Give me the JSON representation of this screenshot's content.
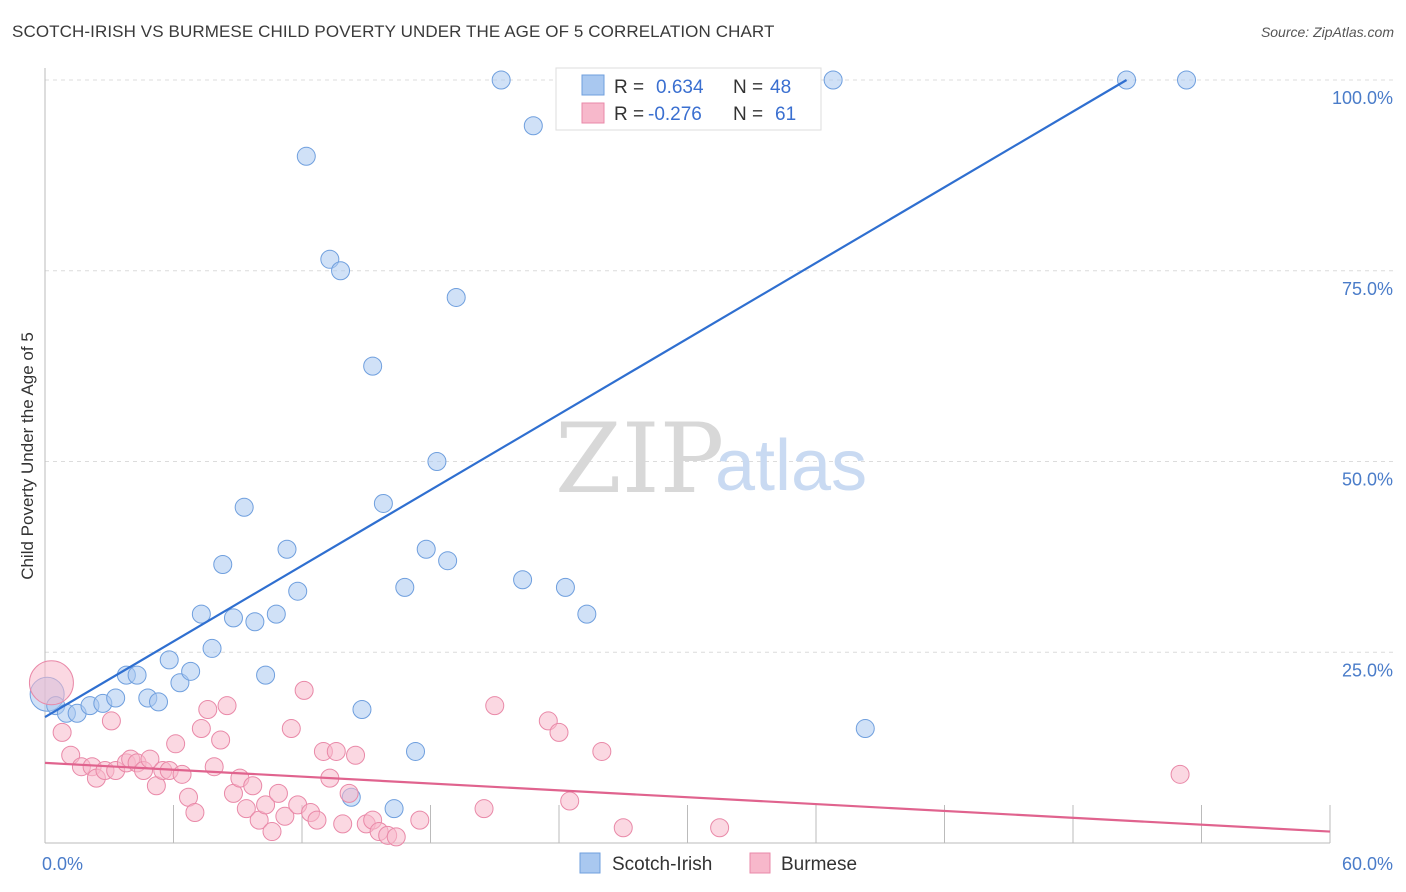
{
  "header": {
    "title": "SCOTCH-IRISH VS BURMESE CHILD POVERTY UNDER THE AGE OF 5 CORRELATION CHART",
    "source": "Source: ZipAtlas.com"
  },
  "watermark": {
    "zip": "ZIP",
    "atlas": "atlas"
  },
  "legend_top": {
    "rows": [
      {
        "r_label": "R =",
        "r_value": "0.634",
        "n_label": "N =",
        "n_value": "48",
        "color": "#a9c8f0"
      },
      {
        "r_label": "R =",
        "r_value": "-0.276",
        "n_label": "N =",
        "n_value": "61",
        "color": "#f7b8cb"
      }
    ]
  },
  "chart_data": {
    "type": "scatter",
    "title": "SCOTCH-IRISH VS BURMESE CHILD POVERTY UNDER THE AGE OF 5 CORRELATION CHART",
    "xlabel": "",
    "ylabel": "Child Poverty Under the Age of 5",
    "xlim": [
      0,
      60
    ],
    "ylim": [
      0,
      100
    ],
    "x_tick_labels": [
      "0.0%",
      "60.0%"
    ],
    "y_ticks": [
      25,
      50,
      75,
      100
    ],
    "y_tick_labels": [
      "25.0%",
      "50.0%",
      "75.0%",
      "100.0%"
    ],
    "grid": true,
    "legend_position": "bottom",
    "series": [
      {
        "name": "Scotch-Irish",
        "color": "#a9c8f0",
        "stroke": "#6f9fde",
        "line_color": "#2f6fd0",
        "trend": {
          "x": [
            0,
            50.5
          ],
          "y": [
            16.5,
            100
          ]
        },
        "points": [
          [
            0.1,
            19.5
          ],
          [
            0.5,
            18
          ],
          [
            1,
            17
          ],
          [
            1.5,
            17
          ],
          [
            2.1,
            18
          ],
          [
            2.7,
            18.3
          ],
          [
            3.3,
            19
          ],
          [
            3.8,
            22
          ],
          [
            4.3,
            22
          ],
          [
            4.8,
            19
          ],
          [
            5.3,
            18.5
          ],
          [
            5.8,
            24
          ],
          [
            6.3,
            21
          ],
          [
            6.8,
            22.5
          ],
          [
            7.3,
            30
          ],
          [
            7.8,
            25.5
          ],
          [
            8.3,
            36.5
          ],
          [
            8.8,
            29.5
          ],
          [
            9.3,
            44
          ],
          [
            9.8,
            29
          ],
          [
            10.3,
            22
          ],
          [
            10.8,
            30
          ],
          [
            11.3,
            38.5
          ],
          [
            11.8,
            33
          ],
          [
            12.2,
            90
          ],
          [
            13.3,
            76.5
          ],
          [
            13.8,
            75
          ],
          [
            14.3,
            6
          ],
          [
            14.8,
            17.5
          ],
          [
            15.3,
            62.5
          ],
          [
            15.8,
            44.5
          ],
          [
            16.3,
            4.5
          ],
          [
            16.8,
            33.5
          ],
          [
            17.3,
            12
          ],
          [
            17.8,
            38.5
          ],
          [
            18.3,
            50
          ],
          [
            18.8,
            37
          ],
          [
            19.2,
            71.5
          ],
          [
            21.3,
            100
          ],
          [
            22.3,
            34.5
          ],
          [
            22.8,
            94
          ],
          [
            24.3,
            33.5
          ],
          [
            25.3,
            30
          ],
          [
            30.3,
            100
          ],
          [
            36.8,
            100
          ],
          [
            38.3,
            15
          ],
          [
            50.5,
            100
          ],
          [
            53.3,
            100
          ]
        ]
      },
      {
        "name": "Burmese",
        "color": "#f7b8cb",
        "stroke": "#e989a8",
        "line_color": "#e0638e",
        "trend": {
          "x": [
            0,
            60
          ],
          "y": [
            10.5,
            1.5
          ]
        },
        "points": [
          [
            0.3,
            21
          ],
          [
            0.8,
            14.5
          ],
          [
            1.2,
            11.5
          ],
          [
            1.7,
            10
          ],
          [
            2.2,
            10
          ],
          [
            2.4,
            8.5
          ],
          [
            2.8,
            9.5
          ],
          [
            3.1,
            16
          ],
          [
            3.3,
            9.5
          ],
          [
            3.8,
            10.5
          ],
          [
            4.0,
            11
          ],
          [
            4.3,
            10.5
          ],
          [
            4.6,
            9.5
          ],
          [
            4.9,
            11
          ],
          [
            5.2,
            7.5
          ],
          [
            5.5,
            9.5
          ],
          [
            5.8,
            9.5
          ],
          [
            6.1,
            13
          ],
          [
            6.4,
            9
          ],
          [
            6.7,
            6
          ],
          [
            7.0,
            4
          ],
          [
            7.3,
            15
          ],
          [
            7.6,
            17.5
          ],
          [
            7.9,
            10
          ],
          [
            8.2,
            13.5
          ],
          [
            8.5,
            18
          ],
          [
            8.8,
            6.5
          ],
          [
            9.1,
            8.5
          ],
          [
            9.4,
            4.5
          ],
          [
            9.7,
            7.5
          ],
          [
            10.0,
            3
          ],
          [
            10.3,
            5
          ],
          [
            10.6,
            1.5
          ],
          [
            10.9,
            6.5
          ],
          [
            11.2,
            3.5
          ],
          [
            11.5,
            15
          ],
          [
            11.8,
            5
          ],
          [
            12.1,
            20
          ],
          [
            12.4,
            4
          ],
          [
            12.7,
            3
          ],
          [
            13.0,
            12
          ],
          [
            13.3,
            8.5
          ],
          [
            13.6,
            12
          ],
          [
            13.9,
            2.5
          ],
          [
            14.2,
            6.5
          ],
          [
            14.5,
            11.5
          ],
          [
            15.0,
            2.5
          ],
          [
            15.3,
            3
          ],
          [
            15.6,
            1.5
          ],
          [
            16.0,
            1
          ],
          [
            16.4,
            0.8
          ],
          [
            17.5,
            3
          ],
          [
            20.5,
            4.5
          ],
          [
            21.0,
            18
          ],
          [
            23.5,
            16
          ],
          [
            24.0,
            14.5
          ],
          [
            24.5,
            5.5
          ],
          [
            26.0,
            12
          ],
          [
            27.0,
            2
          ],
          [
            31.5,
            2
          ],
          [
            53.0,
            9
          ]
        ]
      }
    ]
  }
}
